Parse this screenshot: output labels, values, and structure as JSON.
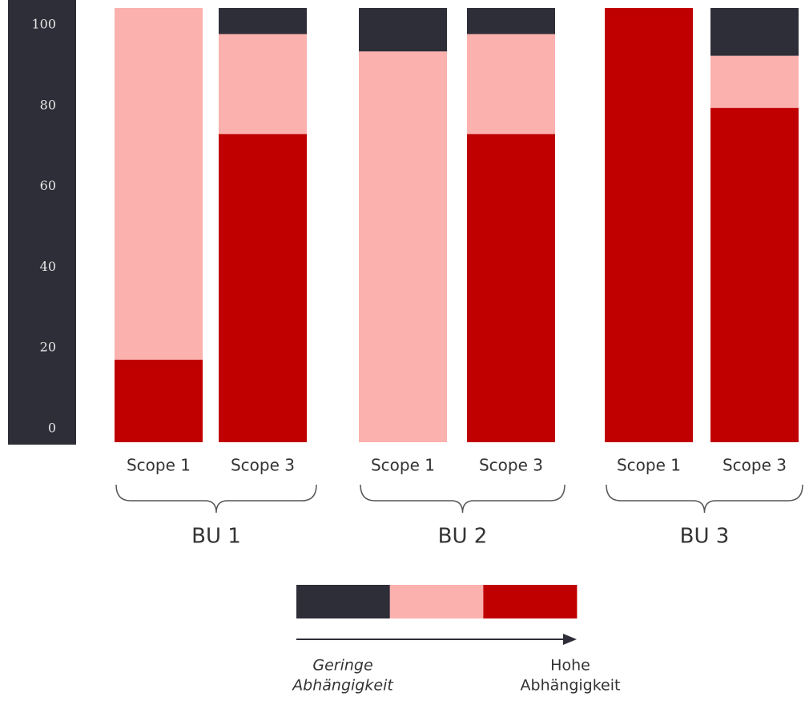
{
  "chart_data": {
    "type": "stacked-bar",
    "categories": [
      "Scope 1",
      "Scope 3",
      "Scope 1",
      "Scope 3",
      "Scope 1",
      "Scope 3"
    ],
    "groups": [
      "BU 1",
      "BU 2",
      "BU 3"
    ],
    "series": [
      {
        "color": "#c00000",
        "values": [
          19,
          71,
          0,
          71,
          100,
          77
        ]
      },
      {
        "color": "#fbb1ad",
        "values": [
          81,
          23,
          90,
          23,
          0,
          12
        ]
      },
      {
        "color": "#2e2e38",
        "values": [
          0,
          6,
          10,
          6,
          0,
          11
        ]
      }
    ],
    "ylim": [
      0,
      100
    ],
    "yticks": [
      0,
      20,
      40,
      60,
      80,
      100
    ],
    "legend_low": [
      "Geringe",
      "Abhängigkeit"
    ],
    "legend_high": [
      "Hohe",
      "Abhängigkeit"
    ]
  }
}
